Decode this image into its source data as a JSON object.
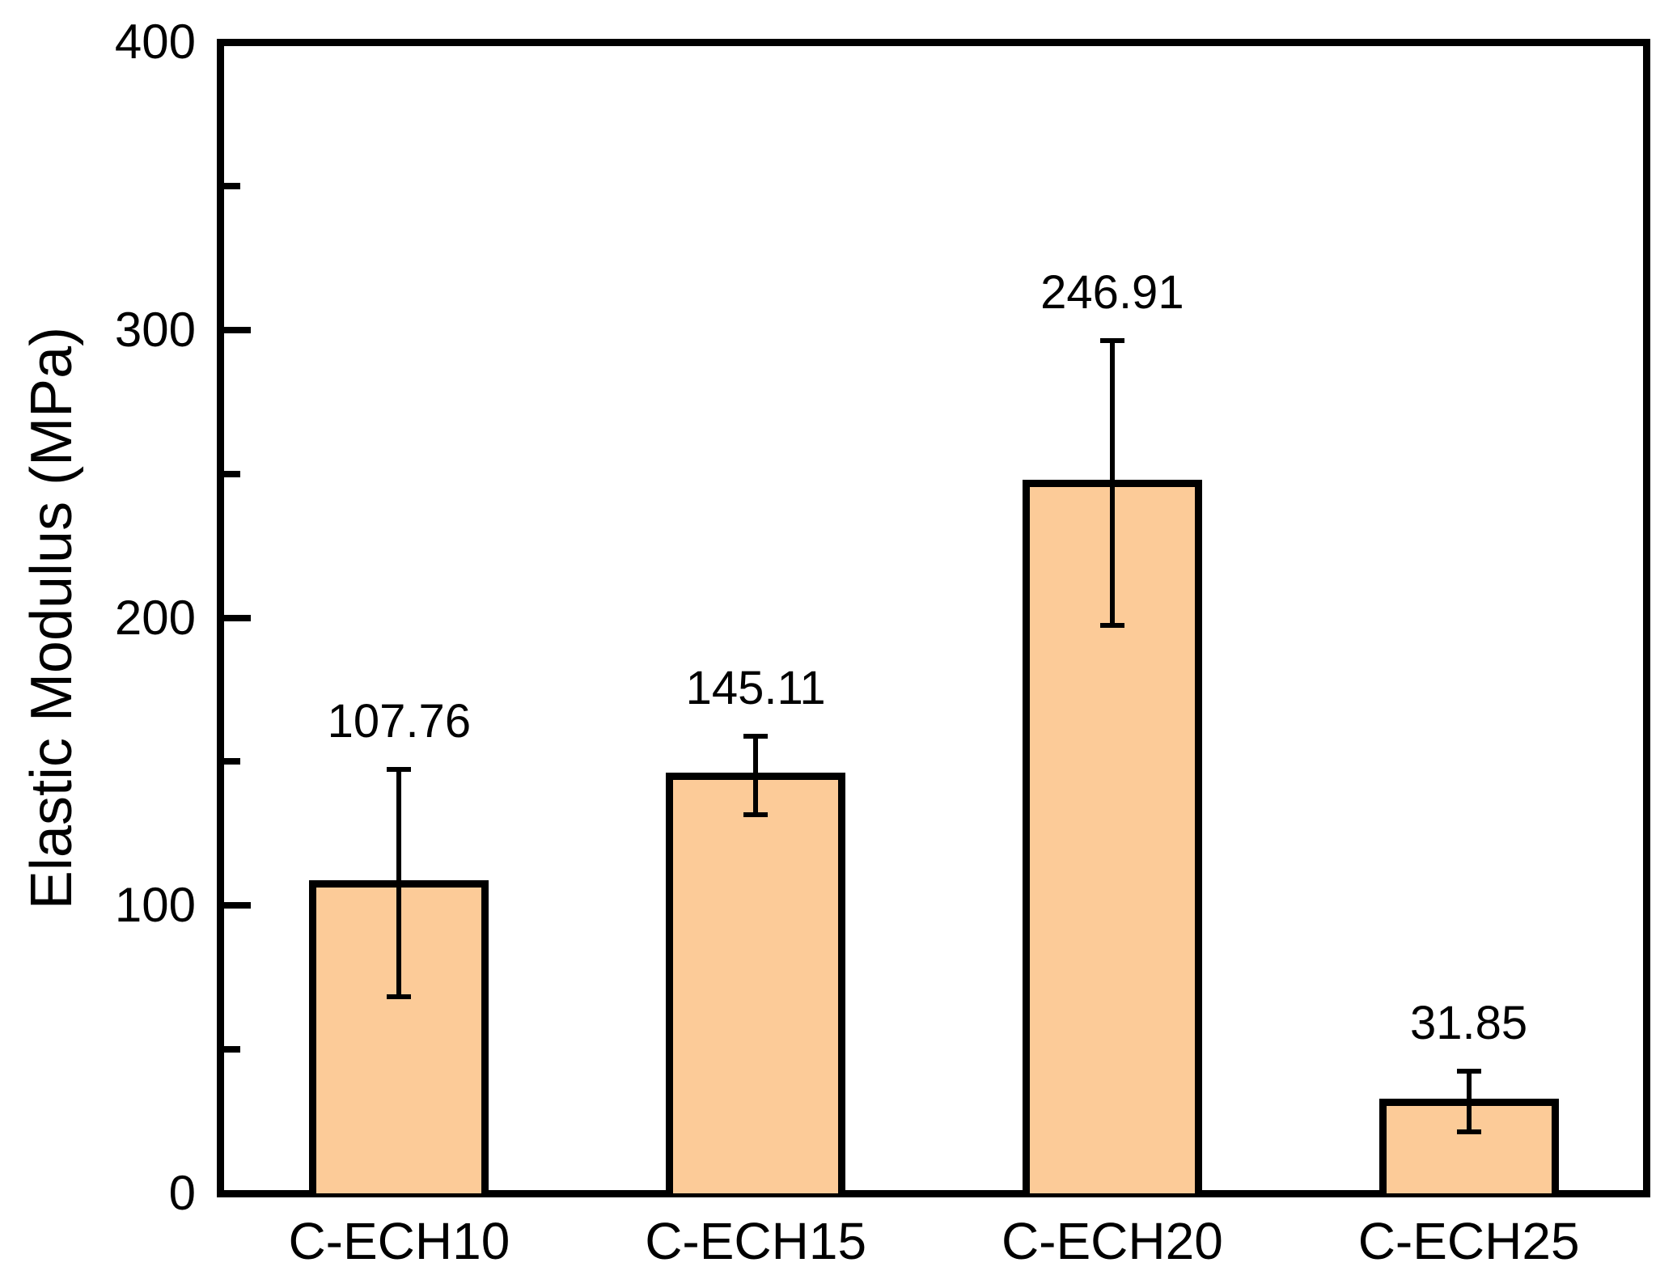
{
  "chart_data": {
    "type": "bar",
    "ylabel": "Elastic Modulus (MPa)",
    "xlabel": "",
    "categories": [
      "C-ECH10",
      "C-ECH15",
      "C-ECH20",
      "C-ECH25"
    ],
    "values": [
      107.76,
      145.11,
      246.91,
      31.85
    ],
    "errors": [
      39.4,
      13.6,
      49.5,
      10.6
    ],
    "value_label_decimals": 2,
    "ylim": [
      0,
      400
    ],
    "y_major_step": 100,
    "y_minor_step": 50,
    "y_tick_labels": [
      "0",
      "100",
      "200",
      "300",
      "400"
    ],
    "grid": false,
    "legend_position": "none",
    "bar_color": "#FCCB98",
    "bar_border_color": "#000000",
    "error_bar_color": "#000000",
    "axis_color": "#000000",
    "text_color": "#000000",
    "background_color": "#FFFFFF"
  }
}
